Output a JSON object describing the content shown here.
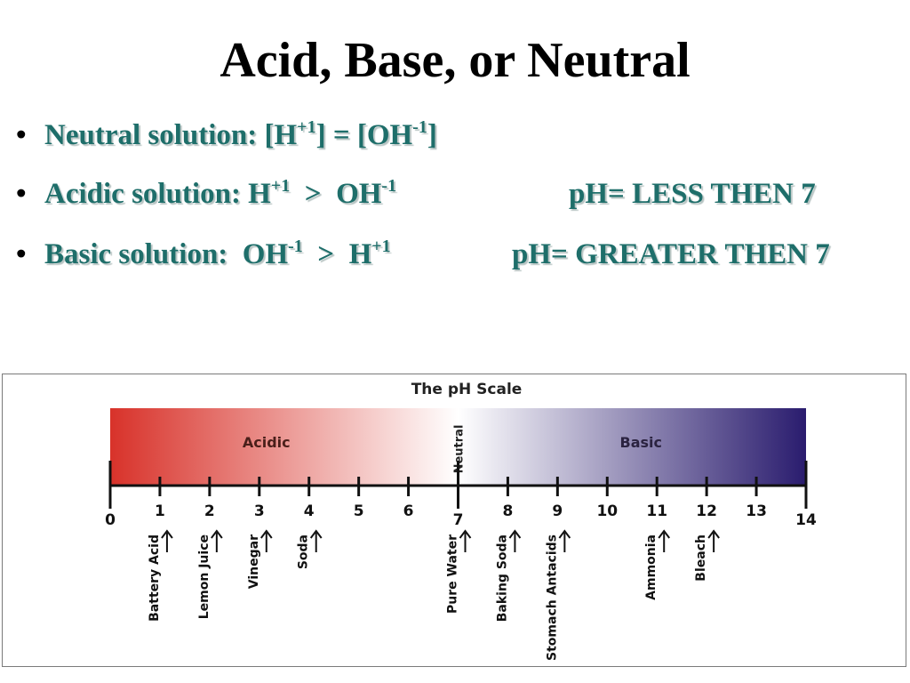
{
  "title": "Acid, Base, or Neutral",
  "bullets": [
    {
      "bullet_glyph": "•",
      "label": "Neutral solution: [H",
      "sup1": "+1",
      "mid": "] = [OH",
      "sup2": "-1",
      "tail": "]"
    },
    {
      "bullet_glyph": "•",
      "label": "Acidic solution: H",
      "sup1": "+1",
      "mid": "  >  OH",
      "sup2": "-1",
      "ph": "pH= LESS THEN 7"
    },
    {
      "bullet_glyph": "•",
      "label": "Basic solution:  OH",
      "sup1": "-1",
      "mid": "  >  H",
      "sup2": "+1",
      "ph": "pH= GREATER THEN 7"
    }
  ],
  "chart_data": {
    "type": "diagram",
    "title": "The pH Scale",
    "region_labels": {
      "acidic": "Acidic",
      "neutral": "Neutral",
      "basic": "Basic"
    },
    "scale_min": 0,
    "scale_max": 14,
    "ticks": [
      0,
      1,
      2,
      3,
      4,
      5,
      6,
      7,
      8,
      9,
      10,
      11,
      12,
      13,
      14
    ],
    "substances": [
      {
        "label": "Battery Acid",
        "ph": 1
      },
      {
        "label": "Lemon Juice",
        "ph": 2
      },
      {
        "label": "Vinegar",
        "ph": 3
      },
      {
        "label": "Soda",
        "ph": 4
      },
      {
        "label": "Pure Water",
        "ph": 7
      },
      {
        "label": "Baking Soda",
        "ph": 8
      },
      {
        "label": "Stomach Antacids",
        "ph": 9
      },
      {
        "label": "Ammonia",
        "ph": 11
      },
      {
        "label": "Bleach",
        "ph": 12
      }
    ],
    "colors": {
      "acid": "#d8322a",
      "neutral": "#ffffff",
      "base": "#2a1c6e"
    }
  }
}
